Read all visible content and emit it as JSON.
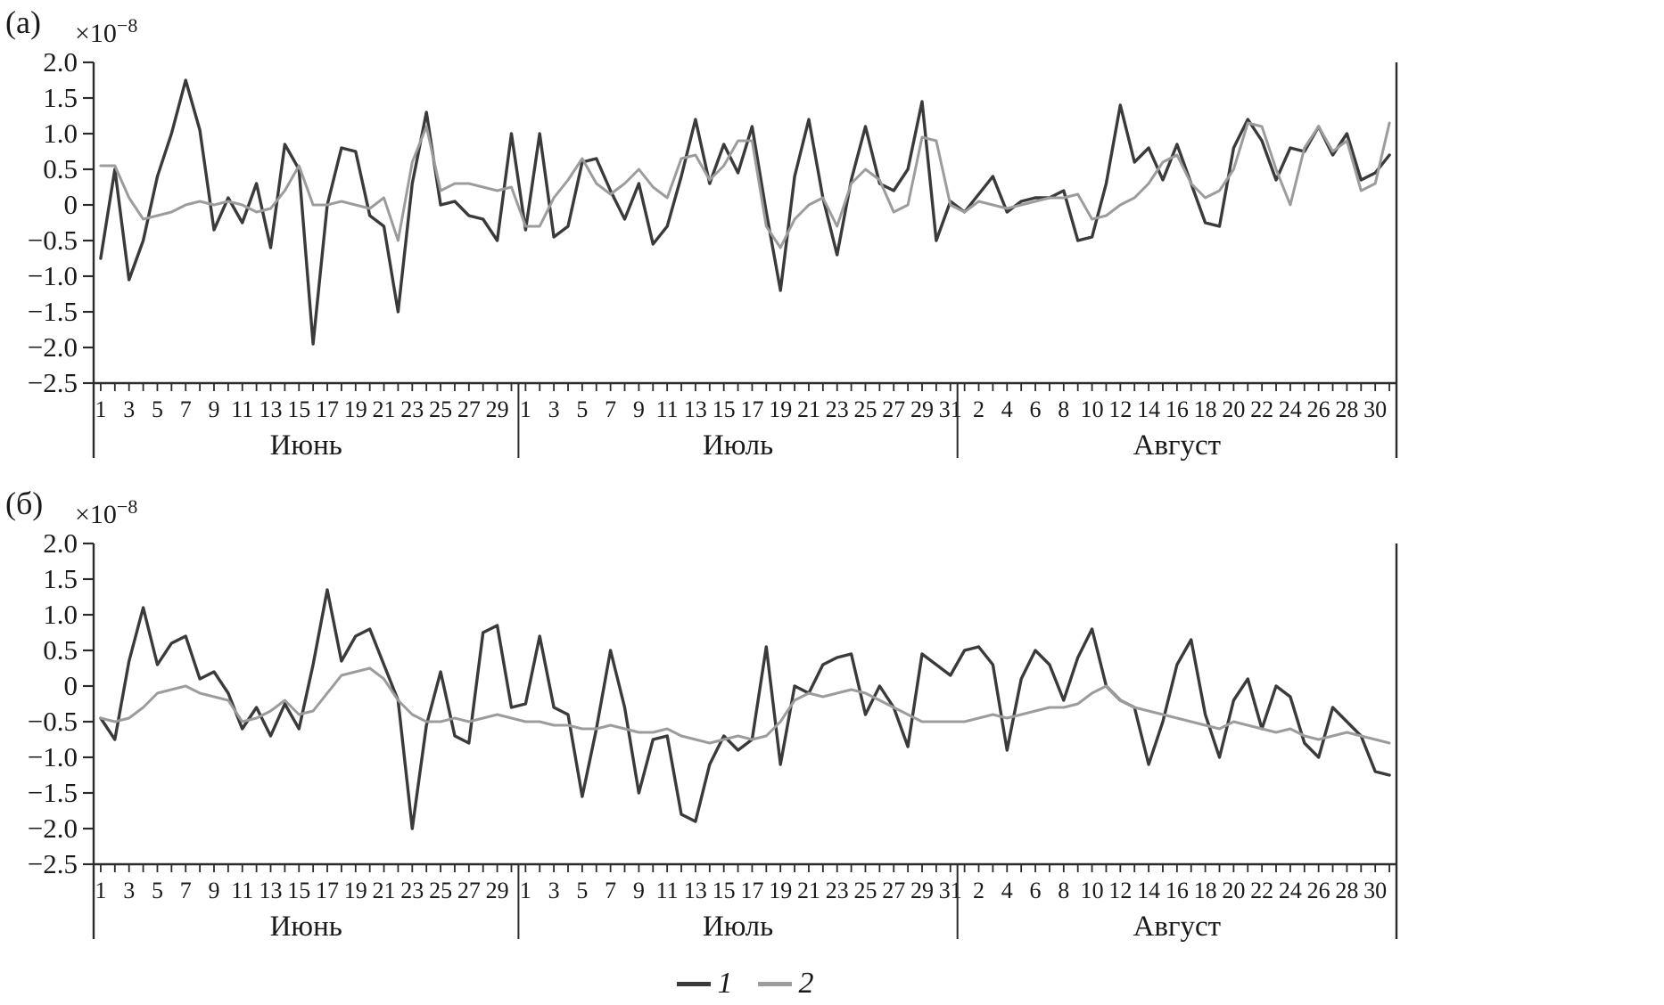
{
  "legend": {
    "items": [
      {
        "label": "1",
        "color": "#3a3a3a"
      },
      {
        "label": "2",
        "color": "#9c9c9c"
      }
    ]
  },
  "chart_data": [
    {
      "type": "line",
      "panel": "(а)",
      "scale_base": "×10",
      "scale_exp": "−8",
      "ylim": [
        -2.5,
        2.0
      ],
      "yticks": [
        2.0,
        1.5,
        1.0,
        0.5,
        0,
        -0.5,
        -1.0,
        -1.5,
        -2.0,
        -2.5
      ],
      "ytick_labels": [
        "2.0",
        "1.5",
        "1.0",
        "0.5",
        "0",
        "−0.5",
        "−1.0",
        "−1.5",
        "−2.0",
        "−2.5"
      ],
      "x_months": [
        {
          "name": "Июнь",
          "days": 30,
          "labeled_days": [
            1,
            3,
            5,
            7,
            9,
            11,
            13,
            15,
            17,
            19,
            21,
            23,
            25,
            27,
            29
          ]
        },
        {
          "name": "Июль",
          "days": 31,
          "labeled_days": [
            1,
            3,
            5,
            7,
            9,
            11,
            13,
            15,
            17,
            19,
            21,
            23,
            25,
            27,
            29,
            31
          ]
        },
        {
          "name": "Август",
          "days": 31,
          "labeled_days": [
            2,
            4,
            6,
            8,
            10,
            12,
            14,
            16,
            18,
            20,
            22,
            24,
            26,
            28,
            30
          ]
        }
      ],
      "series": [
        {
          "name": "1",
          "color": "#3a3a3a",
          "values": [
            -0.75,
            0.5,
            -1.05,
            -0.5,
            0.4,
            1.0,
            1.75,
            1.05,
            -0.35,
            0.1,
            -0.25,
            0.3,
            -0.6,
            0.85,
            0.5,
            -1.95,
            0.0,
            0.8,
            0.75,
            -0.15,
            -0.3,
            -1.5,
            0.3,
            1.3,
            0.0,
            0.05,
            -0.15,
            -0.2,
            -0.5,
            1.0,
            -0.35,
            1.0,
            -0.45,
            -0.3,
            0.6,
            0.65,
            0.2,
            -0.2,
            0.3,
            -0.55,
            -0.3,
            0.4,
            1.2,
            0.3,
            0.85,
            0.45,
            1.1,
            -0.1,
            -1.2,
            0.4,
            1.2,
            0.1,
            -0.7,
            0.35,
            1.1,
            0.3,
            0.2,
            0.5,
            1.45,
            -0.5,
            0.05,
            -0.1,
            0.15,
            0.4,
            -0.1,
            0.05,
            0.1,
            0.1,
            0.2,
            -0.5,
            -0.45,
            0.3,
            1.4,
            0.6,
            0.8,
            0.35,
            0.85,
            0.3,
            -0.25,
            -0.3,
            0.8,
            1.2,
            0.9,
            0.35,
            0.8,
            0.75,
            1.1,
            0.7,
            1.0,
            0.35,
            0.45,
            0.7
          ]
        },
        {
          "name": "2",
          "color": "#9c9c9c",
          "values": [
            0.55,
            0.55,
            0.1,
            -0.2,
            -0.15,
            -0.1,
            0.0,
            0.05,
            0.0,
            0.05,
            0.0,
            -0.1,
            -0.05,
            0.2,
            0.55,
            0.0,
            0.0,
            0.05,
            0.0,
            -0.05,
            0.1,
            -0.5,
            0.6,
            1.1,
            0.2,
            0.3,
            0.3,
            0.25,
            0.2,
            0.25,
            -0.3,
            -0.3,
            0.1,
            0.35,
            0.65,
            0.3,
            0.15,
            0.3,
            0.5,
            0.25,
            0.1,
            0.65,
            0.7,
            0.35,
            0.55,
            0.9,
            0.9,
            -0.3,
            -0.6,
            -0.2,
            0.0,
            0.1,
            -0.3,
            0.3,
            0.5,
            0.35,
            -0.1,
            0.0,
            0.95,
            0.9,
            0.0,
            -0.1,
            0.05,
            0.0,
            -0.05,
            0.0,
            0.05,
            0.1,
            0.1,
            0.15,
            -0.2,
            -0.15,
            0.0,
            0.1,
            0.3,
            0.6,
            0.7,
            0.3,
            0.1,
            0.2,
            0.5,
            1.15,
            1.1,
            0.5,
            0.0,
            0.8,
            1.1,
            0.75,
            0.9,
            0.2,
            0.3,
            1.15
          ]
        }
      ]
    },
    {
      "type": "line",
      "panel": "(б)",
      "scale_base": "×10",
      "scale_exp": "−8",
      "ylim": [
        -2.5,
        2.0
      ],
      "yticks": [
        2.0,
        1.5,
        1.0,
        0.5,
        0,
        -0.5,
        -1.0,
        -1.5,
        -2.0,
        -2.5
      ],
      "ytick_labels": [
        "2.0",
        "1.5",
        "1.0",
        "0.5",
        "0",
        "−0.5",
        "−1.0",
        "−1.5",
        "−2.0",
        "−2.5"
      ],
      "x_months": [
        {
          "name": "Июнь",
          "days": 30,
          "labeled_days": [
            1,
            3,
            5,
            7,
            9,
            11,
            13,
            15,
            17,
            19,
            21,
            23,
            25,
            27,
            29
          ]
        },
        {
          "name": "Июль",
          "days": 31,
          "labeled_days": [
            1,
            3,
            5,
            7,
            9,
            11,
            13,
            15,
            17,
            19,
            21,
            23,
            25,
            27,
            29,
            31
          ]
        },
        {
          "name": "Август",
          "days": 31,
          "labeled_days": [
            2,
            4,
            6,
            8,
            10,
            12,
            14,
            16,
            18,
            20,
            22,
            24,
            26,
            28,
            30
          ]
        }
      ],
      "series": [
        {
          "name": "1",
          "color": "#3a3a3a",
          "values": [
            -0.45,
            -0.75,
            0.35,
            1.1,
            0.3,
            0.6,
            0.7,
            0.1,
            0.2,
            -0.1,
            -0.6,
            -0.3,
            -0.7,
            -0.25,
            -0.6,
            0.3,
            1.35,
            0.35,
            0.7,
            0.8,
            0.3,
            -0.2,
            -2.0,
            -0.55,
            0.2,
            -0.7,
            -0.8,
            0.75,
            0.85,
            -0.3,
            -0.25,
            0.7,
            -0.3,
            -0.4,
            -1.55,
            -0.6,
            0.5,
            -0.3,
            -1.5,
            -0.75,
            -0.7,
            -1.8,
            -1.9,
            -1.1,
            -0.7,
            -0.9,
            -0.75,
            0.55,
            -1.1,
            0.0,
            -0.1,
            0.3,
            0.4,
            0.45,
            -0.4,
            0.0,
            -0.3,
            -0.85,
            0.45,
            0.3,
            0.15,
            0.5,
            0.55,
            0.3,
            -0.9,
            0.1,
            0.5,
            0.3,
            -0.2,
            0.4,
            0.8,
            0.0,
            -0.2,
            -0.3,
            -1.1,
            -0.5,
            0.3,
            0.65,
            -0.4,
            -1.0,
            -0.2,
            0.1,
            -0.6,
            0.0,
            -0.15,
            -0.8,
            -1.0,
            -0.3,
            -0.5,
            -0.7,
            -1.2,
            -1.25
          ]
        },
        {
          "name": "2",
          "color": "#9c9c9c",
          "values": [
            -0.45,
            -0.5,
            -0.45,
            -0.3,
            -0.1,
            -0.05,
            0.0,
            -0.1,
            -0.15,
            -0.2,
            -0.5,
            -0.45,
            -0.35,
            -0.2,
            -0.4,
            -0.35,
            -0.1,
            0.15,
            0.2,
            0.25,
            0.1,
            -0.2,
            -0.4,
            -0.5,
            -0.5,
            -0.45,
            -0.5,
            -0.45,
            -0.4,
            -0.45,
            -0.5,
            -0.5,
            -0.55,
            -0.55,
            -0.6,
            -0.6,
            -0.55,
            -0.6,
            -0.65,
            -0.65,
            -0.6,
            -0.7,
            -0.75,
            -0.8,
            -0.75,
            -0.7,
            -0.75,
            -0.7,
            -0.5,
            -0.2,
            -0.1,
            -0.15,
            -0.1,
            -0.05,
            -0.1,
            -0.2,
            -0.3,
            -0.4,
            -0.5,
            -0.5,
            -0.5,
            -0.5,
            -0.45,
            -0.4,
            -0.45,
            -0.4,
            -0.35,
            -0.3,
            -0.3,
            -0.25,
            -0.1,
            0.0,
            -0.2,
            -0.3,
            -0.35,
            -0.4,
            -0.45,
            -0.5,
            -0.55,
            -0.6,
            -0.5,
            -0.55,
            -0.6,
            -0.65,
            -0.6,
            -0.7,
            -0.75,
            -0.7,
            -0.65,
            -0.7,
            -0.75,
            -0.8
          ]
        }
      ]
    }
  ]
}
